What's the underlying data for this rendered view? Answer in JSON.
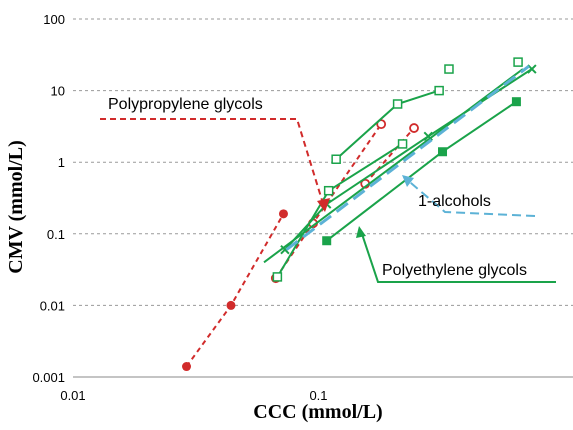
{
  "chart_data": {
    "type": "scatter",
    "title": "",
    "xlabel": "CCC (mmol/L)",
    "ylabel": "CMV (mmol/L)",
    "x_scale": "log",
    "y_scale": "log",
    "xlim": [
      0.01,
      1
    ],
    "ylim": [
      0.001,
      100
    ],
    "x_ticks": [
      "0.01",
      "0.1"
    ],
    "y_ticks": [
      "0.001",
      "0.01",
      "0.1",
      "1",
      "10",
      "100"
    ],
    "grid": "horizontal dashed",
    "series": [
      {
        "color": "#d12b2b",
        "marker": "filled-circle",
        "line": "dashed",
        "x": [
          0.029,
          0.044,
          0.072
        ],
        "y": [
          0.0014,
          0.01,
          0.19
        ]
      },
      {
        "color": "#d12b2b",
        "marker": "open-circle",
        "line": "dashed",
        "x": [
          0.067,
          0.095,
          0.18
        ],
        "y": [
          0.024,
          0.14,
          3.4
        ]
      },
      {
        "color": "#d12b2b",
        "marker": "open-circle",
        "line": "dashed",
        "x": [
          0.155,
          0.245
        ],
        "y": [
          0.5,
          3.0
        ]
      },
      {
        "color": "#1aa34a",
        "marker": "open-square",
        "line": "solid",
        "x": [
          0.068,
          0.11,
          0.22
        ],
        "y": [
          0.025,
          0.4,
          1.8
        ]
      },
      {
        "color": "#1aa34a",
        "marker": "open-square",
        "line": "solid",
        "x": [
          0.118,
          0.21,
          0.31
        ],
        "y": [
          1.1,
          6.5,
          10
        ]
      },
      {
        "color": "#1aa34a",
        "marker": "open-square",
        "line": "none",
        "x": [
          0.34,
          0.65
        ],
        "y": [
          20,
          25
        ]
      },
      {
        "color": "#1aa34a",
        "marker": "filled-square",
        "line": "solid",
        "x": [
          0.108,
          0.32,
          0.64
        ],
        "y": [
          0.08,
          1.4,
          7
        ]
      },
      {
        "color": "#1aa34a",
        "marker": "x",
        "line": "solid",
        "x": [
          0.073,
          0.108,
          0.28,
          0.74
        ],
        "y": [
          0.06,
          0.26,
          2.3,
          20
        ]
      },
      {
        "color": "#1aa34a",
        "marker": "none",
        "line": "solid",
        "x": [
          0.06,
          0.68
        ],
        "y": [
          0.04,
          20
        ]
      },
      {
        "color": "#5cb2d6",
        "marker": "none",
        "line": "long-dash",
        "x": [
          0.074,
          0.72
        ],
        "y": [
          0.06,
          22
        ]
      }
    ],
    "annotations": [
      {
        "text": "Polypropylene glycols",
        "arrow_color": "#d12b2b",
        "style": "dashed"
      },
      {
        "text": "1-alcohols",
        "arrow_color": "#5cb2d6",
        "style": "dashed"
      },
      {
        "text": "Polyethylene glycols",
        "arrow_color": "#1aa34a",
        "style": "solid"
      }
    ]
  }
}
